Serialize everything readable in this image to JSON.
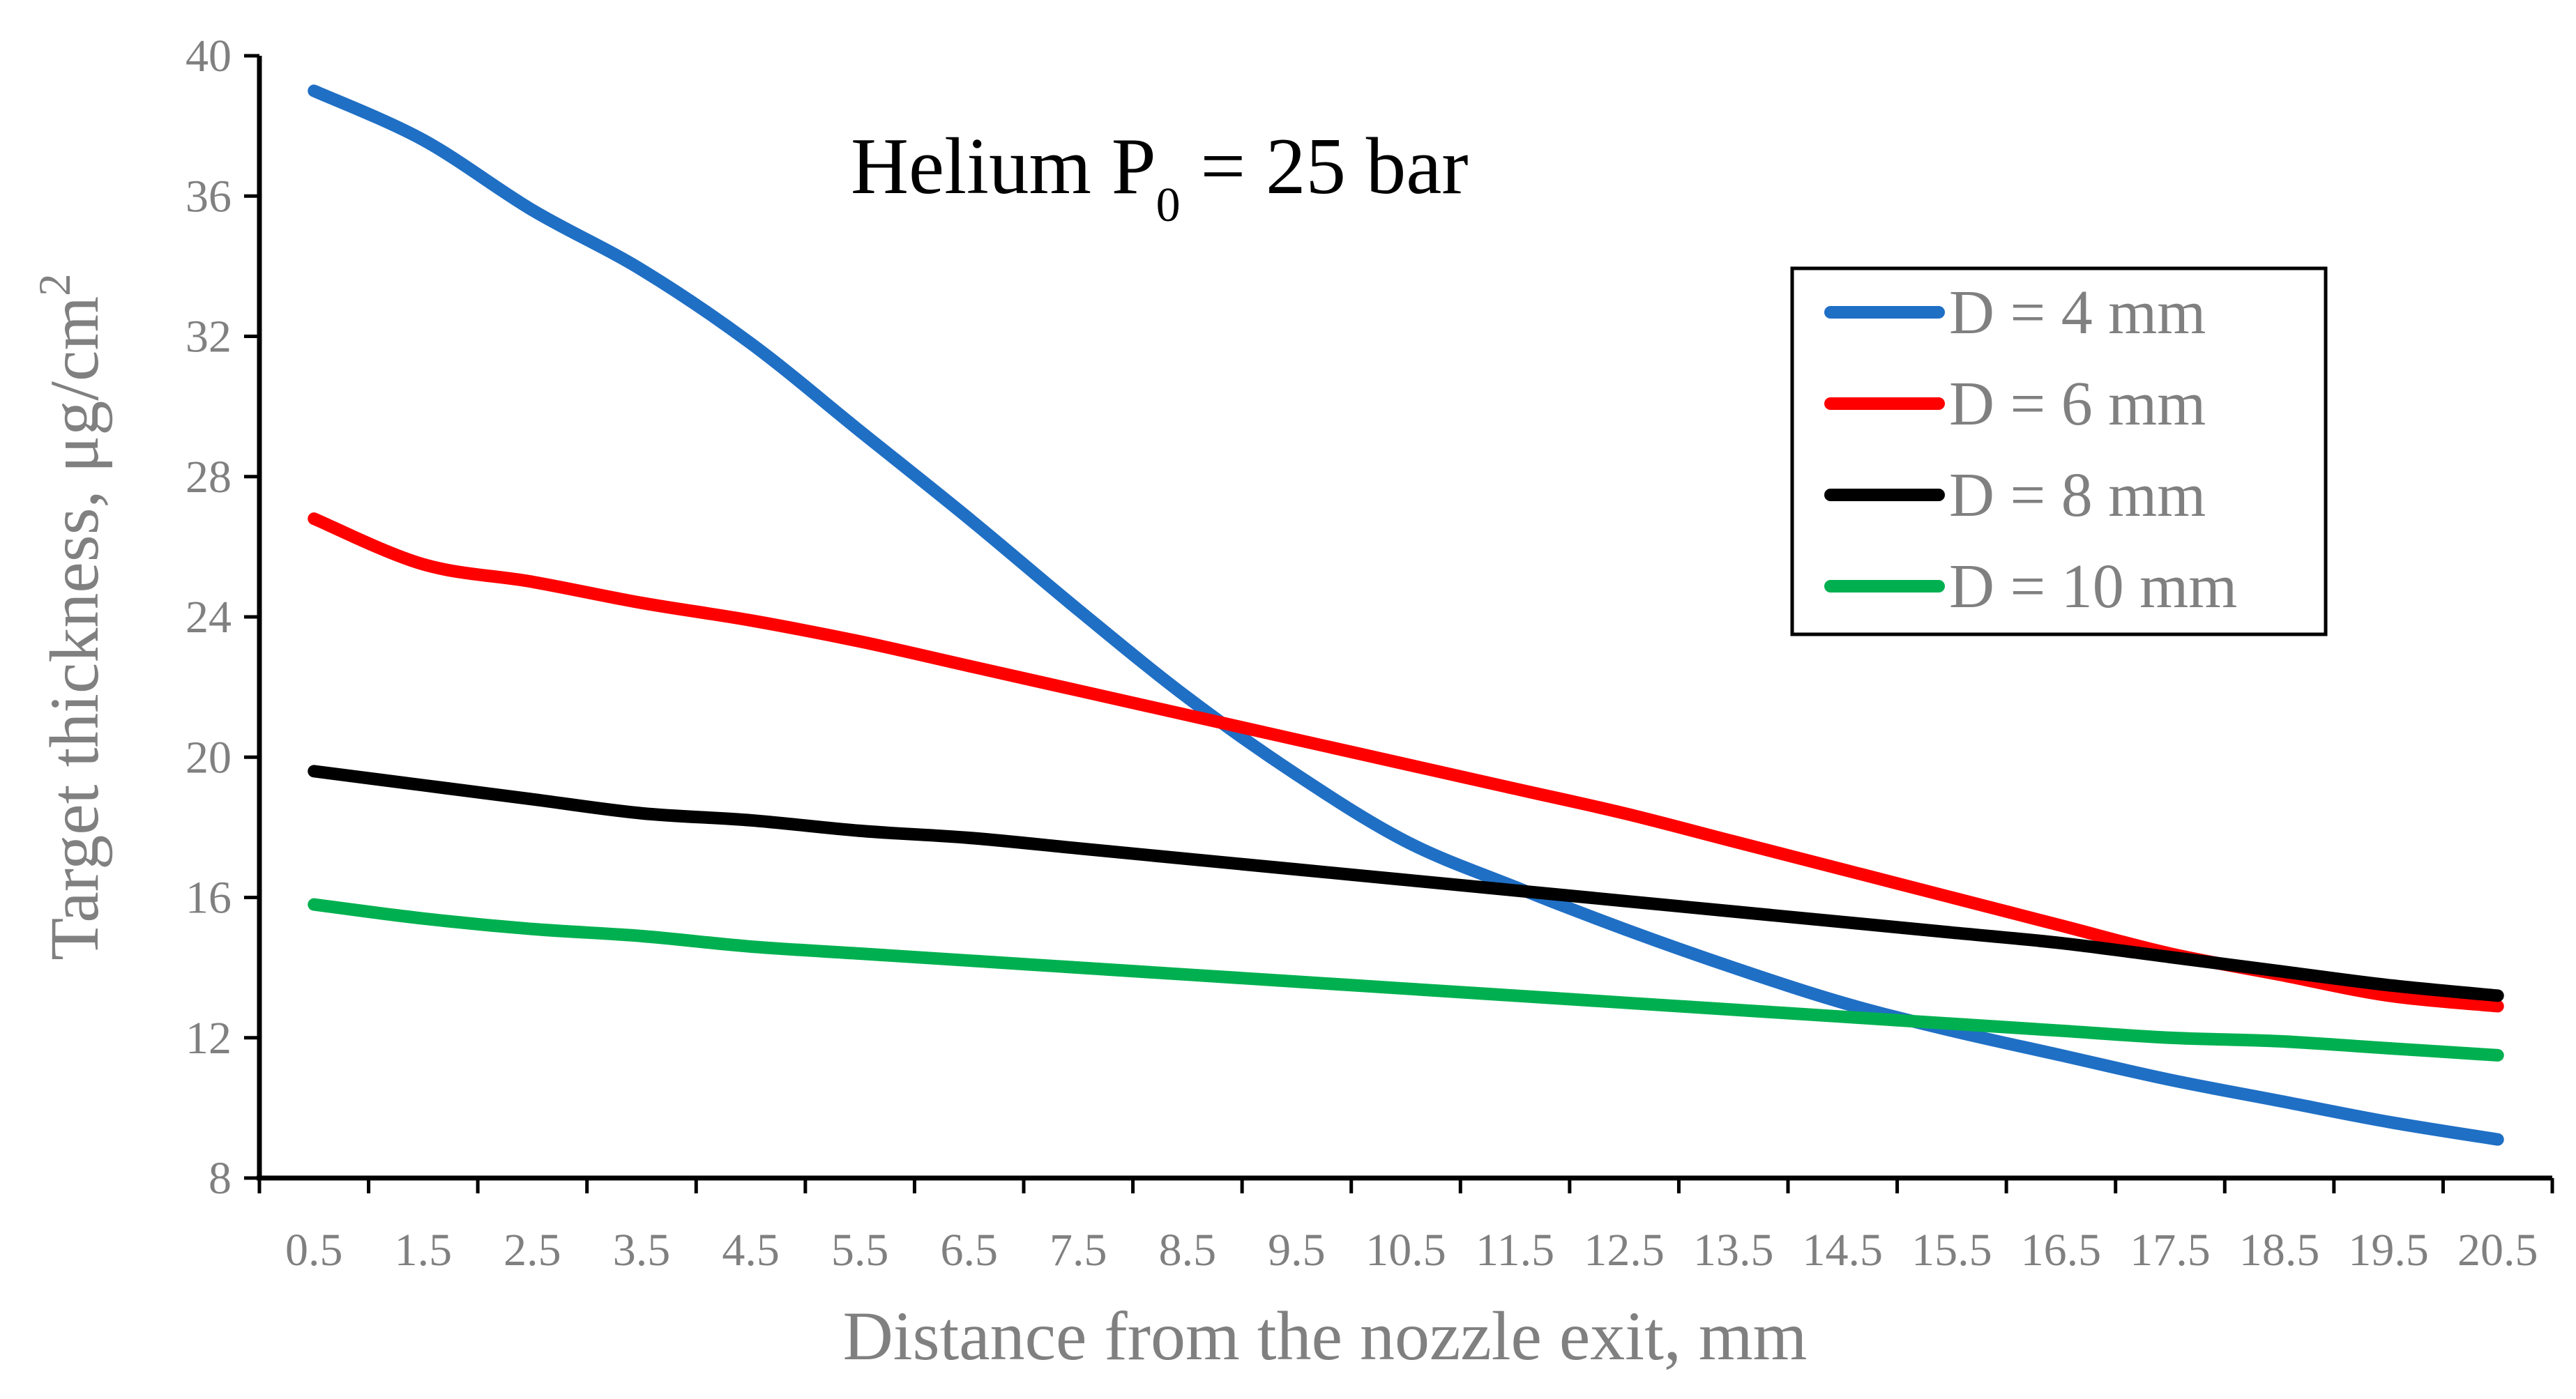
{
  "chart_data": {
    "type": "line",
    "title": "Helium P",
    "title_subscript": "0",
    "title_suffix": " = 25 bar",
    "xlabel": "Distance from the nozzle exit,  mm",
    "ylabel": "Target thickness, μg/cm",
    "ylabel_superscript": "2",
    "categories": [
      "0.5",
      "1.5",
      "2.5",
      "3.5",
      "4.5",
      "5.5",
      "6.5",
      "7.5",
      "8.5",
      "9.5",
      "10.5",
      "11.5",
      "12.5",
      "13.5",
      "14.5",
      "15.5",
      "16.5",
      "17.5",
      "18.5",
      "19.5",
      "20.5"
    ],
    "y_ticks": [
      "8",
      "12",
      "16",
      "20",
      "24",
      "28",
      "32",
      "36",
      "40"
    ],
    "ylim": [
      8,
      40
    ],
    "grid": false,
    "legend_position": "top-right",
    "series": [
      {
        "name": "D = 4 mm",
        "color": "#1F6FC5",
        "values": [
          39.0,
          37.6,
          35.6,
          33.9,
          31.8,
          29.3,
          26.8,
          24.2,
          21.7,
          19.5,
          17.6,
          16.3,
          15.1,
          14.0,
          13.0,
          12.2,
          11.5,
          10.8,
          10.2,
          9.6,
          9.1
        ]
      },
      {
        "name": "D = 6 mm",
        "color": "#FF0000",
        "values": [
          26.8,
          25.5,
          25.0,
          24.4,
          23.9,
          23.3,
          22.6,
          21.9,
          21.2,
          20.5,
          19.8,
          19.1,
          18.4,
          17.6,
          16.8,
          16.0,
          15.2,
          14.4,
          13.8,
          13.2,
          12.9
        ]
      },
      {
        "name": "D = 8 mm",
        "color": "#000000",
        "values": [
          19.6,
          19.2,
          18.8,
          18.4,
          18.2,
          17.9,
          17.7,
          17.4,
          17.1,
          16.8,
          16.5,
          16.2,
          15.9,
          15.6,
          15.3,
          15.0,
          14.7,
          14.3,
          13.9,
          13.5,
          13.2
        ]
      },
      {
        "name": "D = 10 mm",
        "color": "#00B050",
        "values": [
          15.8,
          15.4,
          15.1,
          14.9,
          14.6,
          14.4,
          14.2,
          14.0,
          13.8,
          13.6,
          13.4,
          13.2,
          13.0,
          12.8,
          12.6,
          12.4,
          12.2,
          12.0,
          11.9,
          11.7,
          11.5
        ]
      }
    ]
  }
}
